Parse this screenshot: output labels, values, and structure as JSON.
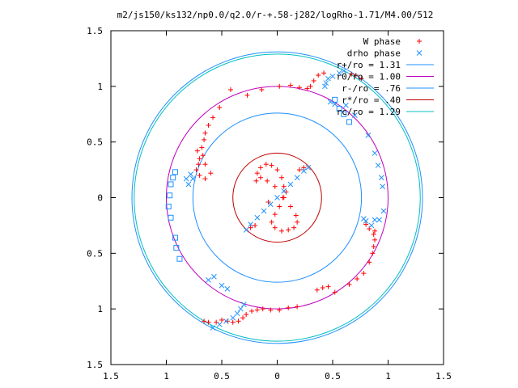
{
  "chart_data": {
    "type": "scatter",
    "title": "m2/js150/ks132/np0.0/q2.0/r-+.58-j282/logRho-1.71/M4.00/512",
    "xlim": [
      -1.5,
      1.5
    ],
    "ylim": [
      -1.5,
      1.5
    ],
    "x_tick_values": [
      -1.5,
      -1,
      -0.5,
      0,
      0.5,
      1,
      1.5
    ],
    "x_tick_labels": [
      "1.5",
      "1",
      "0.5",
      "0",
      "0.5",
      "1",
      "1.5"
    ],
    "y_tick_values": [
      1.5,
      1,
      0.5,
      0,
      -0.5,
      -1,
      -1.5
    ],
    "y_tick_labels": [
      "1.5",
      "1",
      "0.5",
      "0",
      "0.5",
      "1",
      "1.5"
    ],
    "grid": false,
    "legend_position": "top-right",
    "series": [
      {
        "name": "W phase",
        "marker": "plus",
        "color": "#ff0000",
        "points": [
          [
            -0.42,
            0.97
          ],
          [
            -0.27,
            0.92
          ],
          [
            -0.14,
            0.97
          ],
          [
            0.02,
            1.0
          ],
          [
            0.12,
            1.01
          ],
          [
            0.2,
            0.99
          ],
          [
            0.27,
            0.98
          ],
          [
            0.3,
            1.0
          ],
          [
            0.33,
            1.05
          ],
          [
            0.37,
            1.1
          ],
          [
            0.42,
            1.12
          ],
          [
            -0.52,
            0.81
          ],
          [
            -0.58,
            0.72
          ],
          [
            -0.62,
            0.65
          ],
          [
            -0.65,
            0.58
          ],
          [
            -0.66,
            0.52
          ],
          [
            -0.68,
            0.45
          ],
          [
            -0.67,
            0.38
          ],
          [
            -0.65,
            0.3
          ],
          [
            -0.6,
            0.22
          ],
          [
            -0.65,
            0.17
          ],
          [
            -0.7,
            0.2
          ],
          [
            -0.73,
            0.25
          ],
          [
            -0.71,
            0.3
          ],
          [
            -0.7,
            0.35
          ],
          [
            -0.72,
            0.42
          ],
          [
            0.52,
            -0.85
          ],
          [
            0.65,
            -0.78
          ],
          [
            0.72,
            -0.73
          ],
          [
            0.78,
            -0.68
          ],
          [
            0.83,
            -0.58
          ],
          [
            0.86,
            -0.5
          ],
          [
            0.87,
            -0.44
          ],
          [
            0.88,
            -0.38
          ],
          [
            0.87,
            -0.33
          ],
          [
            0.88,
            -0.3
          ],
          [
            0.83,
            -0.28
          ],
          [
            0.8,
            -0.24
          ],
          [
            0.18,
            -0.98
          ],
          [
            0.1,
            -0.99
          ],
          [
            0.02,
            -1.01
          ],
          [
            -0.06,
            -1.01
          ],
          [
            -0.13,
            -1.0
          ],
          [
            -0.18,
            -1.01
          ],
          [
            -0.23,
            -1.02
          ],
          [
            -0.28,
            -1.05
          ],
          [
            -0.31,
            -1.08
          ],
          [
            -0.35,
            -1.11
          ],
          [
            -0.4,
            -1.12
          ],
          [
            -0.45,
            -1.11
          ],
          [
            -0.5,
            -1.1
          ],
          [
            -0.55,
            -1.12
          ],
          [
            -0.62,
            -1.12
          ],
          [
            -0.66,
            -1.11
          ],
          [
            0.36,
            -0.83
          ],
          [
            0.41,
            -0.81
          ],
          [
            0.46,
            -0.8
          ],
          [
            0.67,
            1.11
          ],
          [
            0.71,
            1.1
          ],
          [
            0.76,
            1.07
          ],
          [
            -0.18,
            0.22
          ],
          [
            -0.15,
            0.27
          ],
          [
            -0.1,
            0.3
          ],
          [
            -0.05,
            0.29
          ],
          [
            0.0,
            0.25
          ],
          [
            0.04,
            0.18
          ],
          [
            0.06,
            0.1
          ],
          [
            0.05,
            0.0
          ],
          [
            0.02,
            -0.08
          ],
          [
            -0.02,
            -0.15
          ],
          [
            -0.05,
            -0.22
          ],
          [
            -0.02,
            -0.27
          ],
          [
            0.04,
            -0.3
          ],
          [
            0.1,
            -0.29
          ],
          [
            0.15,
            -0.27
          ],
          [
            0.18,
            -0.22
          ],
          [
            0.17,
            -0.16
          ],
          [
            0.12,
            -0.08
          ],
          [
            0.06,
            0.0
          ],
          [
            -0.02,
            0.1
          ],
          [
            -0.09,
            0.15
          ],
          [
            -0.15,
            0.18
          ],
          [
            -0.19,
            0.15
          ],
          [
            0.2,
            0.25
          ],
          [
            0.24,
            0.27
          ],
          [
            -0.2,
            -0.25
          ],
          [
            -0.24,
            -0.27
          ],
          [
            0.08,
            0.05
          ],
          [
            -0.08,
            -0.04
          ]
        ]
      },
      {
        "name": "drho phase",
        "marker": "cross",
        "color": "#1e90ff",
        "points": [
          [
            0.48,
            0.86
          ],
          [
            0.52,
            0.84
          ],
          [
            0.62,
            0.83
          ],
          [
            0.7,
            0.74
          ],
          [
            0.82,
            0.56
          ],
          [
            0.88,
            0.4
          ],
          [
            0.91,
            0.29
          ],
          [
            0.94,
            0.18
          ],
          [
            0.95,
            0.1
          ],
          [
            -0.57,
            -0.71
          ],
          [
            -0.62,
            -0.74
          ],
          [
            -0.5,
            -0.79
          ],
          [
            -0.45,
            -0.82
          ],
          [
            0.96,
            -0.12
          ],
          [
            0.92,
            -0.2
          ],
          [
            0.88,
            -0.2
          ],
          [
            0.85,
            -0.25
          ],
          [
            0.8,
            -0.21
          ],
          [
            0.78,
            -0.19
          ],
          [
            -0.82,
            0.17
          ],
          [
            -0.8,
            0.12
          ],
          [
            -0.78,
            0.21
          ],
          [
            -0.76,
            0.17
          ],
          [
            0.46,
            1.07
          ],
          [
            0.5,
            1.09
          ],
          [
            0.56,
            1.12
          ],
          [
            0.6,
            1.14
          ],
          [
            0.44,
            1.03
          ],
          [
            0.43,
            1.0
          ],
          [
            -0.58,
            -1.17
          ],
          [
            -0.52,
            -1.14
          ],
          [
            -0.46,
            -1.11
          ],
          [
            -0.4,
            -1.08
          ],
          [
            -0.36,
            -1.04
          ],
          [
            -0.33,
            -1.0
          ],
          [
            -0.3,
            -0.96
          ],
          [
            0.24,
            0.24
          ],
          [
            0.18,
            0.18
          ],
          [
            0.12,
            0.12
          ],
          [
            0.06,
            0.06
          ],
          [
            0.0,
            0.0
          ],
          [
            -0.06,
            -0.06
          ],
          [
            -0.12,
            -0.12
          ],
          [
            -0.18,
            -0.18
          ],
          [
            -0.24,
            -0.24
          ],
          [
            -0.28,
            -0.29
          ],
          [
            0.28,
            0.27
          ]
        ]
      },
      {
        "name": "",
        "marker": "open-square",
        "color": "#1e90ff",
        "points": [
          [
            0.52,
            0.88
          ],
          [
            0.56,
            0.8
          ],
          [
            0.6,
            0.75
          ],
          [
            0.65,
            0.68
          ],
          [
            -0.96,
            0.12
          ],
          [
            -0.97,
            0.02
          ],
          [
            -0.98,
            -0.08
          ],
          [
            -0.96,
            -0.18
          ],
          [
            -0.92,
            -0.36
          ],
          [
            -0.91,
            -0.45
          ],
          [
            -0.88,
            -0.55
          ],
          [
            -0.92,
            0.23
          ],
          [
            -0.94,
            0.18
          ]
        ]
      }
    ],
    "reference_circles": [
      {
        "name": "r+/ro = 1.31",
        "radius": 1.31,
        "color": "#1e90ff"
      },
      {
        "name": "r0/ro = 1.00",
        "radius": 1.0,
        "color": "#c000c0"
      },
      {
        "name": "r-/ro = .76",
        "radius": 0.76,
        "color": "#1e90ff"
      },
      {
        "name": "r*/ro = .40",
        "radius": 0.4,
        "color": "#c00000"
      },
      {
        "name": "rc/ro = 1.29",
        "radius": 1.29,
        "color": "#00c0c0"
      }
    ]
  }
}
